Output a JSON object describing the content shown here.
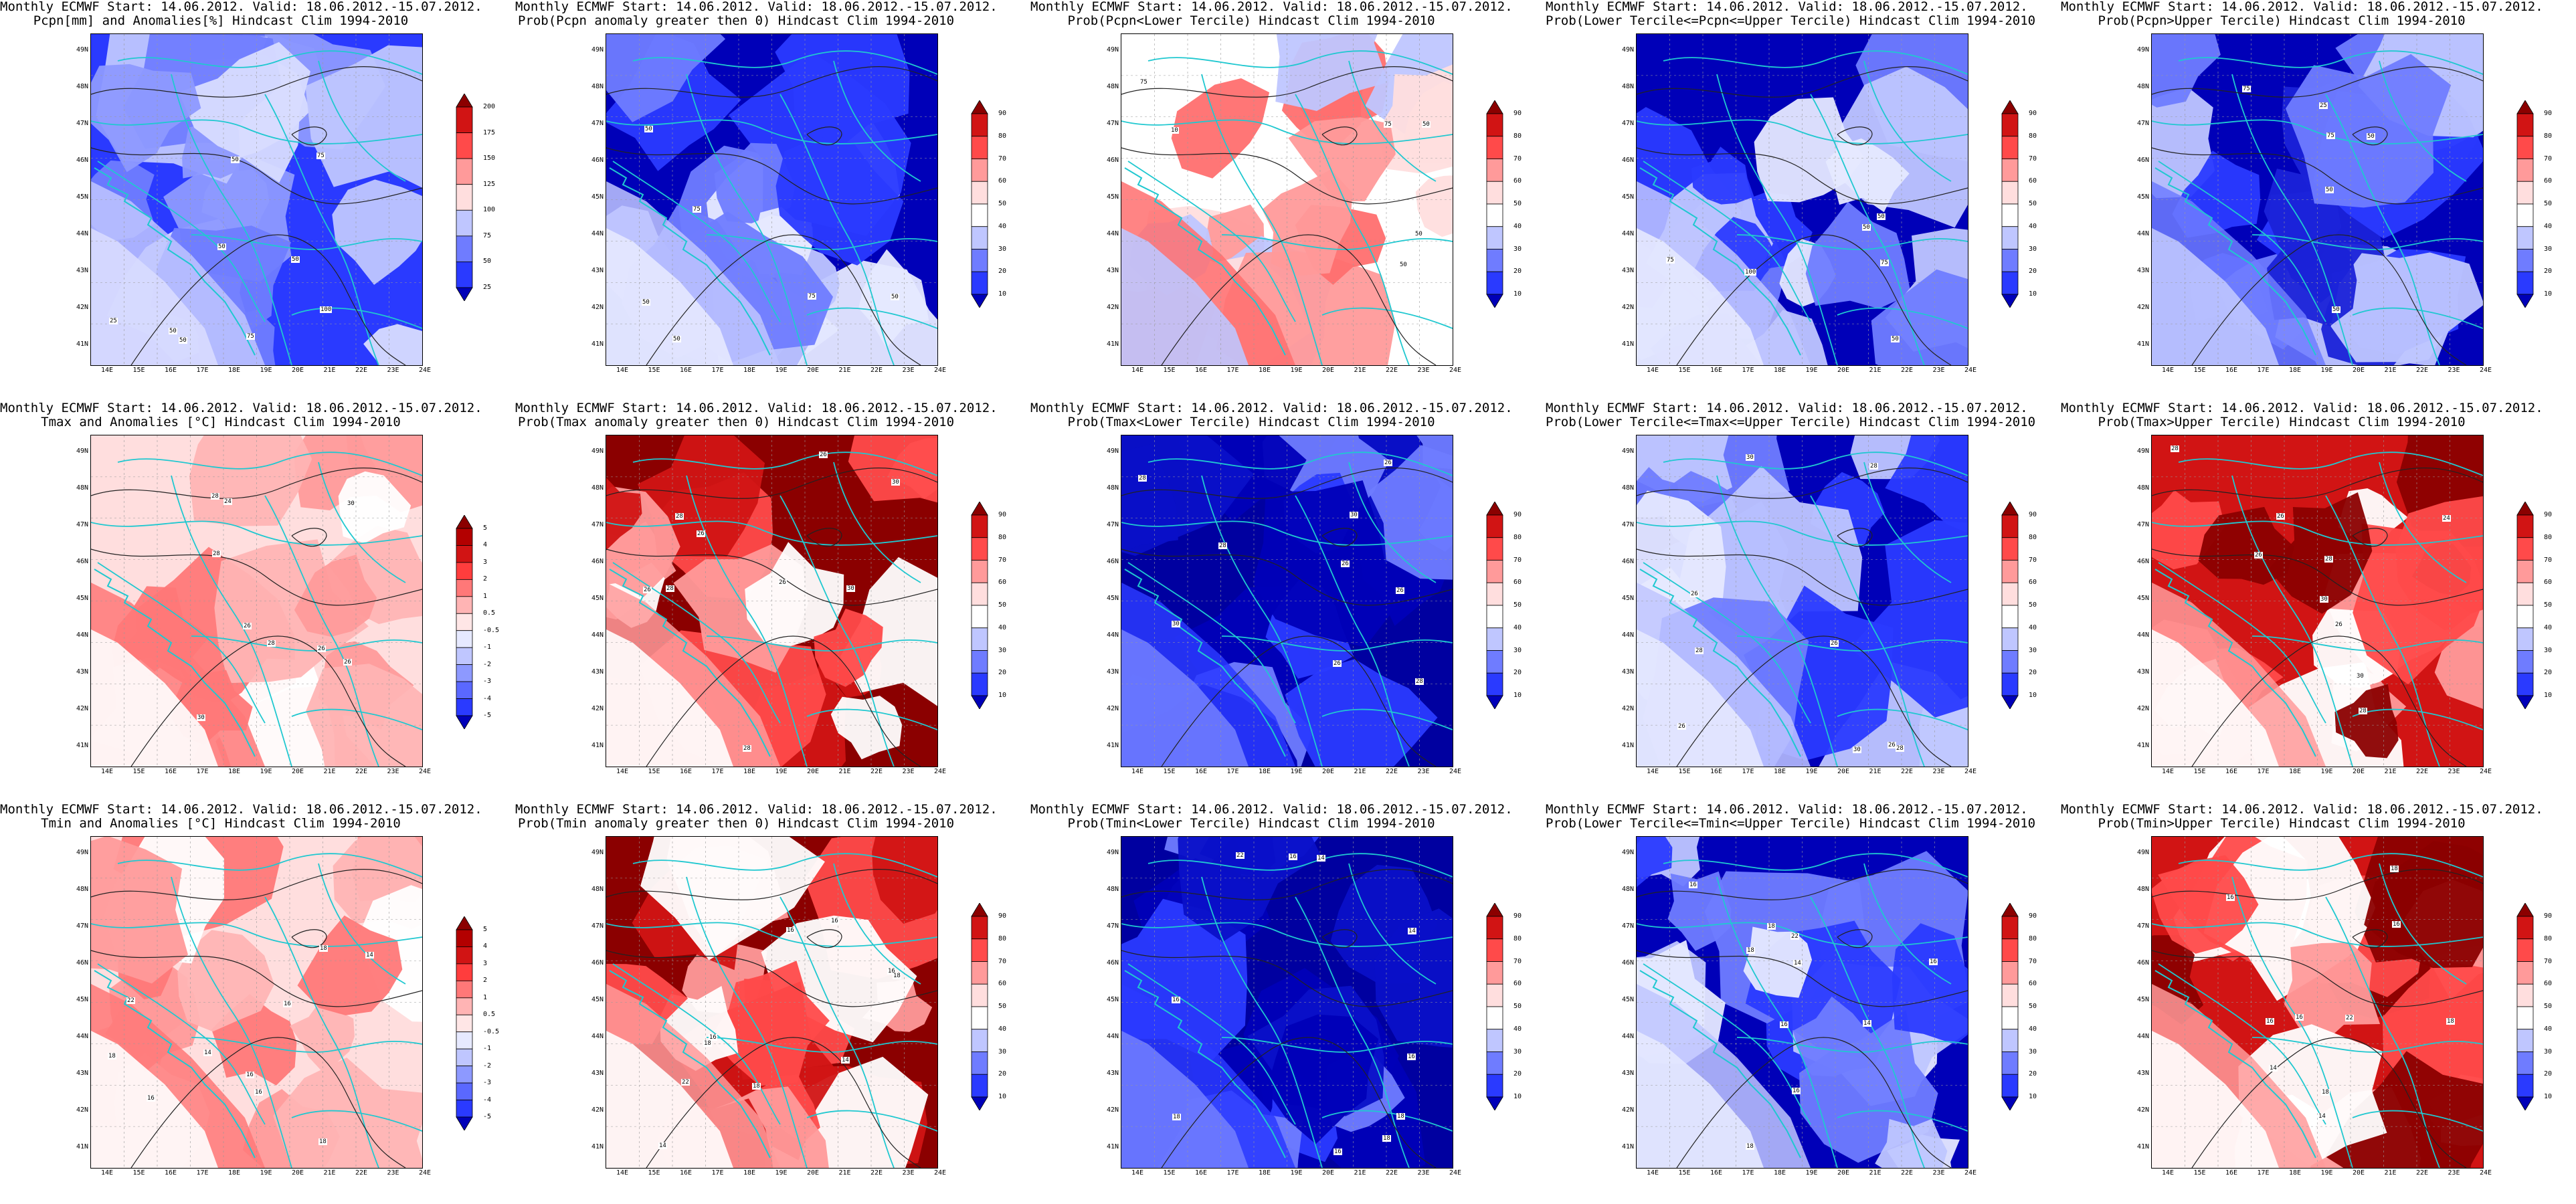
{
  "grid": {
    "lat_labels": [
      "49N",
      "48N",
      "47N",
      "46N",
      "45N",
      "44N",
      "43N",
      "42N",
      "41N"
    ],
    "lon_labels": [
      "14E",
      "15E",
      "16E",
      "17E",
      "18E",
      "19E",
      "20E",
      "21E",
      "22E",
      "23E",
      "24E"
    ]
  },
  "legends": {
    "anom": {
      "labels": [
        "200",
        "175",
        "150",
        "125",
        "100",
        "75",
        "50",
        "25"
      ],
      "colors": [
        "#8b0000",
        "#d11414",
        "#ff4a4a",
        "#ff9a9a",
        "#ffdede",
        "#bfc6ff",
        "#6f7cff",
        "#2a3aff",
        "#0000b8"
      ]
    },
    "anomT": {
      "labels": [
        "5",
        "4",
        "3",
        "2",
        "1",
        "0.5",
        "-0.5",
        "-1",
        "-2",
        "-3",
        "-4",
        "-5"
      ],
      "colors": [
        "#8b0000",
        "#b30000",
        "#d11414",
        "#ff3d3d",
        "#ff7878",
        "#ffb4b4",
        "#ffe6e6",
        "#e6e9ff",
        "#bfc6ff",
        "#8d99ff",
        "#5a68ff",
        "#2a3aff",
        "#0000b8"
      ]
    },
    "prob": {
      "labels": [
        "90",
        "80",
        "70",
        "60",
        "50",
        "40",
        "30",
        "20",
        "10"
      ],
      "colors": [
        "#8b0000",
        "#d11414",
        "#ff4a4a",
        "#ff9a9a",
        "#ffdede",
        "#ffffff",
        "#bfc6ff",
        "#6f7cff",
        "#2a3aff",
        "#0000b8"
      ]
    }
  },
  "panels": [
    {
      "line1": "Monthly ECMWF Start: 14.06.2012. Valid: 18.06.2012.-15.07.2012.",
      "line2": "Pcpn[mm] and Anomalies[%] Hindcast Clim 1994-2010",
      "legend": "anom",
      "scheme": "cool",
      "contour_labels": [
        "50",
        "50",
        "50",
        "50",
        "75",
        "75",
        "50",
        "25",
        "100"
      ]
    },
    {
      "line1": "Monthly ECMWF Start: 14.06.2012. Valid: 18.06.2012.-15.07.2012.",
      "line2": "Prob(Pcpn anomaly greater then 0) Hindcast Clim 1994-2010",
      "legend": "prob",
      "scheme": "blue",
      "contour_labels": [
        "50",
        "50",
        "50",
        "75",
        "75",
        "50"
      ]
    },
    {
      "line1": "Monthly ECMWF Start: 14.06.2012. Valid: 18.06.2012.-15.07.2012.",
      "line2": "Prob(Pcpn<Lower Tercile) Hindcast Clim 1994-2010",
      "legend": "prob",
      "scheme": "mixred",
      "contour_labels": [
        "50",
        "50",
        "50",
        "75",
        "75",
        "10"
      ]
    },
    {
      "line1": "Monthly ECMWF Start: 14.06.2012. Valid: 18.06.2012.-15.07.2012.",
      "line2": "Prob(Lower Tercile<=Pcpn<=Upper Tercile) Hindcast Clim 1994-2010",
      "legend": "prob",
      "scheme": "blue",
      "contour_labels": [
        "50",
        "50",
        "50",
        "75",
        "75",
        "100"
      ]
    },
    {
      "line1": "Monthly ECMWF Start: 14.06.2012. Valid: 18.06.2012.-15.07.2012.",
      "line2": "Prob(Pcpn>Upper Tercile) Hindcast Clim 1994-2010",
      "legend": "prob",
      "scheme": "deepblue",
      "contour_labels": [
        "50",
        "50",
        "50",
        "75",
        "75",
        "25"
      ]
    },
    {
      "line1": "Monthly ECMWF Start: 14.06.2012. Valid: 18.06.2012.-15.07.2012.",
      "line2": "Tmax and Anomalies [°C] Hindcast Clim 1994-2010",
      "legend": "anomT",
      "scheme": "lightred",
      "contour_labels": [
        "28",
        "28",
        "28",
        "26",
        "30",
        "26",
        "30",
        "26",
        "24"
      ]
    },
    {
      "line1": "Monthly ECMWF Start: 14.06.2012. Valid: 18.06.2012.-15.07.2012.",
      "line2": "Prob(Tmax anomaly greater then 0) Hindcast Clim 1994-2010",
      "legend": "prob",
      "scheme": "darkred",
      "contour_labels": [
        "28",
        "28",
        "28",
        "26",
        "26",
        "30",
        "26",
        "30",
        "26"
      ]
    },
    {
      "line1": "Monthly ECMWF Start: 14.06.2012. Valid: 18.06.2012.-15.07.2012.",
      "line2": "Prob(Tmax<Lower Tercile) Hindcast Clim 1994-2010",
      "legend": "prob",
      "scheme": "navy",
      "contour_labels": [
        "28",
        "28",
        "28",
        "26",
        "26",
        "30",
        "26",
        "30",
        "26"
      ]
    },
    {
      "line1": "Monthly ECMWF Start: 14.06.2012. Valid: 18.06.2012.-15.07.2012.",
      "line2": "Prob(Lower Tercile<=Tmax<=Upper Tercile) Hindcast Clim 1994-2010",
      "legend": "prob",
      "scheme": "blue",
      "contour_labels": [
        "28",
        "28",
        "28",
        "26",
        "26",
        "30",
        "26",
        "30",
        "26"
      ]
    },
    {
      "line1": "Monthly ECMWF Start: 14.06.2012. Valid: 18.06.2012.-15.07.2012.",
      "line2": "Prob(Tmax>Upper Tercile) Hindcast Clim 1994-2010",
      "legend": "prob",
      "scheme": "red",
      "contour_labels": [
        "28",
        "28",
        "28",
        "26",
        "26",
        "30",
        "26",
        "30",
        "24"
      ]
    },
    {
      "line1": "Monthly ECMWF Start: 14.06.2012. Valid: 18.06.2012.-15.07.2012.",
      "line2": "Tmin and Anomalies [°C] Hindcast Clim 1994-2010",
      "legend": "anomT",
      "scheme": "lightred",
      "contour_labels": [
        "14",
        "14",
        "16",
        "16",
        "16",
        "18",
        "18",
        "16",
        "22",
        "18"
      ]
    },
    {
      "line1": "Monthly ECMWF Start: 14.06.2012. Valid: 18.06.2012.-15.07.2012.",
      "line2": "Prob(Tmin anomaly greater then 0) Hindcast Clim 1994-2010",
      "legend": "prob",
      "scheme": "darkred",
      "contour_labels": [
        "14",
        "14",
        "16",
        "16",
        "16",
        "18",
        "18",
        "16",
        "22",
        "18"
      ]
    },
    {
      "line1": "Monthly ECMWF Start: 14.06.2012. Valid: 18.06.2012.-15.07.2012.",
      "line2": "Prob(Tmin<Lower Tercile) Hindcast Clim 1994-2010",
      "legend": "prob",
      "scheme": "navy",
      "contour_labels": [
        "14",
        "14",
        "16",
        "16",
        "16",
        "18",
        "18",
        "16",
        "22",
        "18"
      ]
    },
    {
      "line1": "Monthly ECMWF Start: 14.06.2012. Valid: 18.06.2012.-15.07.2012.",
      "line2": "Prob(Lower Tercile<=Tmin<=Upper Tercile) Hindcast Clim 1994-2010",
      "legend": "prob",
      "scheme": "blue",
      "contour_labels": [
        "14",
        "14",
        "16",
        "16",
        "16",
        "18",
        "18",
        "16",
        "22",
        "18"
      ]
    },
    {
      "line1": "Monthly ECMWF Start: 14.06.2012. Valid: 18.06.2012.-15.07.2012.",
      "line2": "Prob(Tmin>Upper Tercile) Hindcast Clim 1994-2010",
      "legend": "prob",
      "scheme": "red",
      "contour_labels": [
        "14",
        "14",
        "16",
        "16",
        "16",
        "18",
        "18",
        "16",
        "22",
        "18"
      ]
    }
  ],
  "scheme_colors": {
    "cool": [
      "#2a3aff",
      "#6f7cff",
      "#8d99ff",
      "#bfc6ff",
      "#d8dcff"
    ],
    "blue": [
      "#0000b8",
      "#2a3aff",
      "#6f7cff",
      "#bfc6ff",
      "#e6e9ff"
    ],
    "deepblue": [
      "#0000b8",
      "#1a22d8",
      "#2a3aff",
      "#6f7cff",
      "#bfc6ff"
    ],
    "navy": [
      "#0000a0",
      "#0000b8",
      "#0a10c8",
      "#2a3aff",
      "#6f7cff"
    ],
    "mixred": [
      "#ffffff",
      "#ffdede",
      "#ff9a9a",
      "#ff6f6f",
      "#bfc6ff"
    ],
    "lightred": [
      "#ffdede",
      "#ff9a9a",
      "#ffb4b4",
      "#ff7878",
      "#ffffff"
    ],
    "darkred": [
      "#8b0000",
      "#d11414",
      "#ff4a4a",
      "#ff9a9a",
      "#ffffff"
    ],
    "red": [
      "#d11414",
      "#ff4a4a",
      "#8b0000",
      "#ff9a9a",
      "#ffffff"
    ]
  }
}
